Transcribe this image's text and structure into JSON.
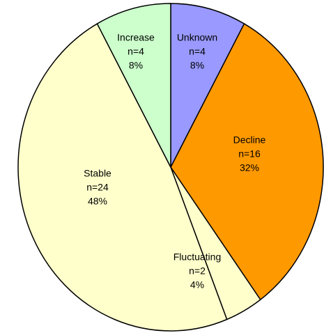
{
  "chart_data": {
    "type": "pie",
    "categories": [
      "Unknown",
      "Decline",
      "Fluctuating",
      "Stable",
      "Increase"
    ],
    "values": [
      8,
      32,
      4,
      48,
      8
    ],
    "value_labels": [
      "8%",
      "32%",
      "4%",
      "48%",
      "8%"
    ],
    "counts": [
      4,
      16,
      2,
      24,
      4
    ],
    "count_labels": [
      "n=4",
      "n=16",
      "n=2",
      "n=24",
      "n=4"
    ],
    "colors": [
      "#9999ff",
      "#ff9900",
      "#ffffcc",
      "#ffffcc",
      "#ccffcc"
    ]
  }
}
